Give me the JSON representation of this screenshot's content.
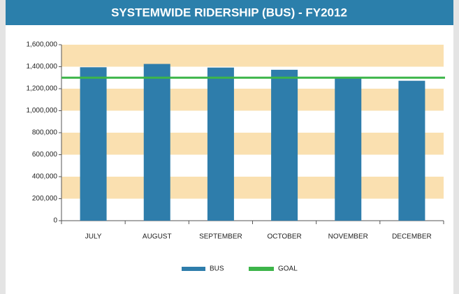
{
  "chart_data": {
    "type": "bar",
    "title": "SYSTEMWIDE RIDERSHIP (BUS) - FY2012",
    "categories": [
      "JULY",
      "AUGUST",
      "SEPTEMBER",
      "OCTOBER",
      "NOVEMBER",
      "DECEMBER"
    ],
    "series": [
      {
        "name": "BUS",
        "color": "#2e7dab",
        "values": [
          1395000,
          1425000,
          1392000,
          1372000,
          1295000,
          1272000
        ]
      }
    ],
    "goal": {
      "name": "GOAL",
      "value": 1300000,
      "color": "#3db54a"
    },
    "ylim": [
      0,
      1600000
    ],
    "yticks": [
      0,
      {
        "value": 200000,
        "label": "200,000"
      },
      {
        "value": 400000,
        "label": "400,000"
      },
      {
        "value": 600000,
        "label": "600,000"
      },
      {
        "value": 800000,
        "label": "800,000"
      },
      {
        "value": 1000000,
        "label": "1,000,000"
      },
      {
        "value": 1200000,
        "label": "1,200,000"
      },
      {
        "value": 1400000,
        "label": "1,400,000"
      },
      {
        "value": 1600000,
        "label": "1,600,000"
      }
    ],
    "band_color": "#fae0b0"
  }
}
